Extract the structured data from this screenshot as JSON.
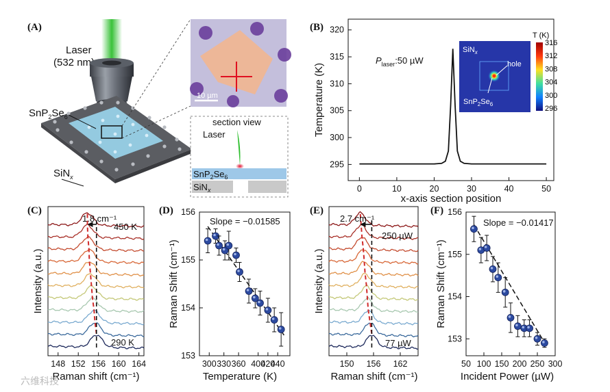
{
  "panels": {
    "A": {
      "label": "(A)",
      "laser_text": "Laser",
      "laser_wavelength": "(532 nm)",
      "material_base": "SnP",
      "material_sub1": "2",
      "material_mid": "Se",
      "material_sub2": "6",
      "substrate_base": "SiN",
      "substrate_sub": "x",
      "scale_bar": "10 µm",
      "section_view_title": "section view",
      "section_laser": "Laser",
      "colors": {
        "laser": "#2fbf2f",
        "flake": "#f2b690",
        "film": "#9ec8e8",
        "substrate": "#c9c9c9"
      }
    },
    "B": {
      "label": "(B)",
      "power_prefix": "P",
      "power_sub": "laser",
      "power_value": ":50 µW",
      "inset_title_base": "SiN",
      "inset_title_sub": "x",
      "inset_hole": "hole",
      "inset_mat_base": "SnP",
      "inset_mat_sub1": "2",
      "inset_mat_mid": "Se",
      "inset_mat_sub2": "6",
      "colorbar_title": "T (K)",
      "colorbar_ticks": [
        "316",
        "312",
        "308",
        "304",
        "300",
        "296"
      ]
    },
    "C": {
      "label": "(C)",
      "shift": "1.8 cm⁻¹",
      "top_label": "450 K",
      "bottom_label": "290 K"
    },
    "D": {
      "label": "(D)",
      "slope": "Slope = −0.01585"
    },
    "E": {
      "label": "(E)",
      "shift": "2.7 cm⁻¹",
      "top_label": "250 µW",
      "bottom_label": "77 µW"
    },
    "F": {
      "label": "(F)",
      "slope": "Slope = −0.01417"
    }
  },
  "watermark": "六维科技",
  "chart_data": [
    {
      "id": "B",
      "type": "line",
      "xlabel": "x-axis section position",
      "ylabel": "Temperature (K)",
      "xlim": [
        -3,
        52
      ],
      "ylim": [
        292,
        322
      ],
      "xticks": [
        "0",
        "10",
        "20",
        "30",
        "40",
        "50"
      ],
      "yticks": [
        "295",
        "300",
        "305",
        "310",
        "315",
        "320"
      ],
      "series": [
        {
          "name": "T",
          "x": [
            0,
            20,
            22,
            23,
            23.8,
            24.4,
            25,
            25.6,
            26.2,
            27,
            28,
            30,
            50
          ],
          "y": [
            295.1,
            295.1,
            295.2,
            295.6,
            297.5,
            306,
            316.5,
            306,
            297.5,
            295.6,
            295.2,
            295.1,
            295.1
          ]
        }
      ]
    },
    {
      "id": "C",
      "type": "line",
      "xlabel": "Raman shift (cm⁻¹)",
      "ylabel": "Intensity (a.u.)",
      "xlim": [
        146,
        165
      ],
      "xticks": [
        "148",
        "152",
        "156",
        "160",
        "164"
      ],
      "series_colors": [
        "#1e2a5c",
        "#3b6a9c",
        "#7aaad0",
        "#a8c8b0",
        "#c4c878",
        "#e0b060",
        "#e09048",
        "#d86838",
        "#c44c30",
        "#a83028",
        "#8c1818"
      ],
      "peak_positions": [
        155.6,
        155.3,
        155.1,
        154.8,
        154.6,
        154.4,
        154.2,
        154.1,
        153.9,
        153.8,
        153.8
      ]
    },
    {
      "id": "D",
      "type": "scatter",
      "xlabel": "Temperature (K)",
      "ylabel": "Raman Shift (cm⁻¹)",
      "xlim": [
        280,
        465
      ],
      "ylim": [
        153,
        156
      ],
      "xticks": [
        "300",
        "330",
        "360",
        "400",
        "420",
        "440"
      ],
      "yticks": [
        "153",
        "154",
        "155",
        "156"
      ],
      "x": [
        297,
        313,
        320,
        332,
        340,
        355,
        362,
        381,
        394,
        404,
        420,
        433,
        447
      ],
      "y": [
        155.4,
        155.5,
        155.3,
        155.2,
        155.3,
        155.1,
        154.75,
        154.35,
        154.2,
        154.1,
        153.95,
        153.75,
        153.55
      ],
      "err": [
        0.25,
        0.15,
        0.2,
        0.2,
        0.3,
        0.15,
        0.2,
        0.25,
        0.2,
        0.25,
        0.25,
        0.25,
        0.35
      ],
      "fit": {
        "x": [
          297,
          455
        ],
        "y": [
          155.7,
          153.4
        ]
      }
    },
    {
      "id": "E",
      "type": "line",
      "xlabel": "Raman shift (cm⁻¹)",
      "ylabel": "Intensity (a.u.)",
      "xlim": [
        146,
        166
      ],
      "xticks": [
        "150",
        "156",
        "162"
      ],
      "series_colors": [
        "#1e2a5c",
        "#3b6a9c",
        "#7aaad0",
        "#a8c8b0",
        "#c4c878",
        "#e0b060",
        "#e09048",
        "#d86838",
        "#c44c30",
        "#a83028",
        "#8c1818"
      ],
      "peak_positions": [
        155.6,
        155.2,
        154.8,
        154.6,
        154.4,
        154.1,
        153.9,
        153.7,
        153.4,
        153.2,
        153.0
      ]
    },
    {
      "id": "F",
      "type": "scatter",
      "xlabel": "Incident Power (µW)",
      "ylabel": "Raman Shift (cm⁻¹)",
      "xlim": [
        50,
        300
      ],
      "ylim": [
        152.6,
        156
      ],
      "xticks": [
        "50",
        "100",
        "150",
        "200",
        "250",
        "300"
      ],
      "yticks": [
        "153",
        "154",
        "155",
        "156"
      ],
      "x": [
        72,
        92,
        108,
        125,
        140,
        160,
        175,
        195,
        213,
        228,
        250,
        270
      ],
      "y": [
        155.6,
        155.1,
        155.15,
        154.65,
        154.45,
        154.1,
        153.5,
        153.3,
        153.25,
        153.25,
        153.0,
        152.9
      ],
      "err": [
        0.3,
        0.3,
        0.3,
        0.3,
        0.35,
        0.35,
        0.35,
        0.25,
        0.2,
        0.2,
        0.15,
        0.1
      ],
      "fit": {
        "x": [
          72,
          278
        ],
        "y": [
          155.7,
          152.8
        ]
      }
    }
  ]
}
